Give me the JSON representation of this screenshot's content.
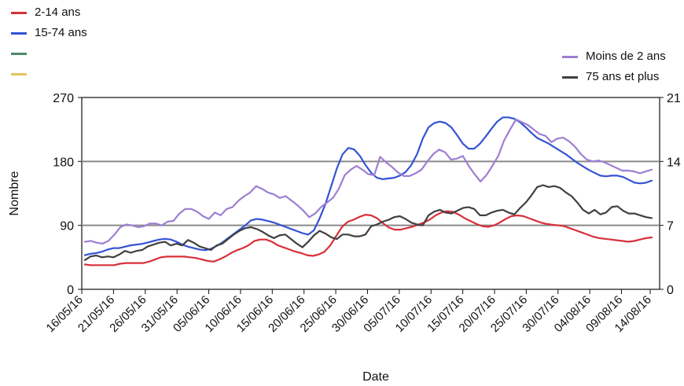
{
  "legend_left": [
    {
      "label": "2-14 ans",
      "color": "#d7303a"
    },
    {
      "label": "15-74 ans",
      "color": "#3553d4"
    },
    {
      "label": "",
      "color": "#4b8a6b"
    },
    {
      "label": "",
      "color": "#e6c45a"
    }
  ],
  "legend_right": [
    {
      "label": "Moins de 2 ans",
      "color": "#9d7fd2"
    },
    {
      "label": "75 ans et plus",
      "color": "#404040"
    }
  ],
  "chart_data": {
    "type": "line",
    "xlabel": "Date",
    "ylabel": "Nombre",
    "ylim_left": [
      0,
      270
    ],
    "ylim_right": [
      0,
      21
    ],
    "yticks_left": [
      0,
      90,
      180,
      270
    ],
    "yticks_right": [
      0,
      7,
      14,
      21
    ],
    "xticks": [
      "16/05/16",
      "21/05/16",
      "26/05/16",
      "31/05/16",
      "05/06/16",
      "10/06/16",
      "15/06/16",
      "20/06/16",
      "25/06/16",
      "30/06/16",
      "05/07/16",
      "10/07/16",
      "15/07/16",
      "20/07/16",
      "25/07/16",
      "30/07/16",
      "04/08/16",
      "09/08/16",
      "14/08/16"
    ],
    "x_start": "16/05/16",
    "x_end": "15/08/16",
    "reference_lines_left": [
      90,
      180
    ],
    "series": [
      {
        "name": "2-14 ans",
        "axis": "left",
        "color": "#d7303a",
        "values": [
          35,
          34,
          34,
          34,
          34,
          34,
          36,
          37,
          37,
          37,
          37,
          39,
          42,
          45,
          46,
          46,
          46,
          46,
          45,
          44,
          42,
          40,
          39,
          42,
          46,
          51,
          55,
          58,
          62,
          68,
          70,
          70,
          67,
          62,
          59,
          56,
          53,
          51,
          48,
          47,
          49,
          53,
          62,
          75,
          88,
          95,
          98,
          102,
          105,
          104,
          100,
          93,
          87,
          84,
          84,
          86,
          88,
          91,
          94,
          98,
          104,
          108,
          110,
          109,
          105,
          100,
          96,
          92,
          89,
          88,
          90,
          94,
          99,
          103,
          104,
          103,
          100,
          97,
          94,
          92,
          91,
          90,
          89,
          86,
          83,
          80,
          77,
          74,
          72,
          71,
          70,
          69,
          68,
          67,
          68,
          70,
          72,
          73
        ]
      },
      {
        "name": "15-74 ans",
        "axis": "left",
        "color": "#3553d4",
        "values": [
          48,
          50,
          51,
          53,
          56,
          58,
          58,
          60,
          62,
          63,
          64,
          66,
          68,
          70,
          71,
          70,
          67,
          63,
          60,
          58,
          56,
          55,
          57,
          61,
          66,
          72,
          78,
          84,
          90,
          97,
          99,
          98,
          96,
          94,
          91,
          88,
          85,
          82,
          79,
          77,
          83,
          100,
          120,
          145,
          170,
          190,
          199,
          197,
          188,
          175,
          164,
          157,
          155,
          156,
          157,
          160,
          165,
          175,
          190,
          212,
          228,
          234,
          236,
          234,
          228,
          217,
          205,
          198,
          198,
          205,
          215,
          226,
          236,
          242,
          242,
          240,
          235,
          228,
          220,
          213,
          209,
          205,
          200,
          195,
          190,
          184,
          178,
          173,
          168,
          164,
          160,
          159,
          160,
          160,
          158,
          154,
          150,
          149,
          150,
          153
        ]
      },
      {
        "name": "Moins de 2 ans",
        "axis": "right",
        "color": "#9d7fd2",
        "values": [
          5.2,
          5.3,
          5.1,
          5.0,
          5.3,
          6.0,
          6.8,
          7.1,
          7.0,
          6.8,
          6.9,
          7.2,
          7.2,
          7.0,
          7.4,
          7.5,
          8.3,
          8.8,
          8.8,
          8.5,
          8.0,
          7.7,
          8.4,
          8.1,
          8.8,
          9.0,
          9.7,
          10.2,
          10.6,
          11.3,
          11.0,
          10.6,
          10.4,
          10.0,
          10.2,
          9.7,
          9.2,
          8.6,
          7.9,
          8.3,
          9.0,
          9.5,
          10.0,
          11.0,
          12.5,
          13.1,
          13.5,
          13.1,
          12.6,
          12.5,
          14.5,
          13.9,
          13.4,
          12.8,
          12.4,
          12.4,
          12.7,
          13.1,
          14.0,
          14.8,
          15.3,
          15.0,
          14.2,
          14.3,
          14.6,
          13.5,
          12.6,
          11.8,
          12.5,
          13.5,
          14.6,
          16.3,
          17.5,
          18.6,
          18.3,
          18.0,
          17.5,
          17.0,
          16.8,
          16.1,
          16.5,
          16.6,
          16.2,
          15.6,
          14.8,
          14.2,
          14.0,
          14.1,
          13.9,
          13.6,
          13.3,
          13.0,
          13.0,
          12.9,
          12.7,
          12.9,
          13.1
        ]
      },
      {
        "name": "75 ans et plus",
        "axis": "right",
        "color": "#404040",
        "values": [
          3.2,
          3.6,
          3.7,
          3.5,
          3.6,
          3.5,
          3.8,
          4.2,
          4.0,
          4.2,
          4.3,
          4.7,
          4.9,
          5.1,
          5.2,
          4.8,
          5.0,
          4.8,
          5.4,
          5.1,
          4.7,
          4.5,
          4.3,
          4.8,
          5.0,
          5.5,
          6.0,
          6.4,
          6.7,
          6.8,
          6.6,
          6.3,
          5.9,
          5.6,
          5.9,
          6.0,
          5.5,
          5.0,
          4.6,
          5.2,
          5.9,
          6.4,
          6.1,
          5.7,
          5.5,
          6.0,
          6.0,
          5.8,
          5.8,
          6.0,
          6.9,
          7.1,
          7.4,
          7.6,
          7.9,
          8.0,
          7.7,
          7.3,
          7.1,
          7.0,
          8.1,
          8.5,
          8.7,
          8.4,
          8.3,
          8.6,
          8.9,
          9.0,
          8.8,
          8.1,
          8.1,
          8.4,
          8.6,
          8.7,
          8.4,
          8.2,
          8.9,
          9.5,
          10.3,
          11.2,
          11.4,
          11.2,
          11.3,
          11.1,
          10.6,
          10.2,
          9.5,
          8.7,
          8.3,
          8.7,
          8.2,
          8.4,
          9.0,
          9.1,
          8.6,
          8.3,
          8.3,
          8.1,
          7.9,
          7.8
        ]
      }
    ]
  }
}
